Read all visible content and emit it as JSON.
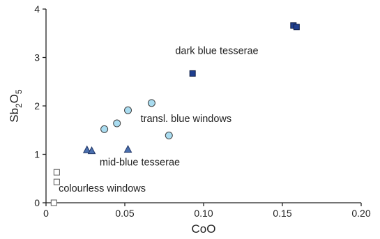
{
  "chart_data": {
    "type": "scatter",
    "title": "",
    "xlabel": "CoO",
    "ylabel": {
      "base": "Sb",
      "sub1": "2",
      "mid": "O",
      "sub2": "5"
    },
    "xlim": [
      0,
      0.2
    ],
    "ylim": [
      0,
      4
    ],
    "xticks": [
      0,
      0.05,
      0.1,
      0.15,
      0.2
    ],
    "xtick_labels": [
      "0",
      "0.05",
      "0.10",
      "0.15",
      "0.20"
    ],
    "yticks": [
      0,
      1,
      2,
      3,
      4
    ],
    "ytick_labels": [
      "0",
      "1",
      "2",
      "3",
      "4"
    ],
    "grid": false,
    "legend": "none",
    "series": [
      {
        "marker": "square",
        "fill": "#ffffff",
        "stroke": "#555555",
        "points": [
          {
            "x": 0.005,
            "y": 0.0
          },
          {
            "x": 0.0068,
            "y": 0.43
          },
          {
            "x": 0.0068,
            "y": 0.63
          }
        ]
      },
      {
        "marker": "triangle",
        "fill": "#4a6fae",
        "stroke": "#1f3566",
        "points": [
          {
            "x": 0.026,
            "y": 1.09
          },
          {
            "x": 0.029,
            "y": 1.07
          },
          {
            "x": 0.052,
            "y": 1.1
          }
        ]
      },
      {
        "marker": "circle",
        "fill": "#a9dcf0",
        "stroke": "#404040",
        "points": [
          {
            "x": 0.037,
            "y": 1.52
          },
          {
            "x": 0.045,
            "y": 1.64
          },
          {
            "x": 0.052,
            "y": 1.91
          },
          {
            "x": 0.067,
            "y": 2.06
          },
          {
            "x": 0.078,
            "y": 1.39
          }
        ]
      },
      {
        "marker": "square",
        "fill": "#1f3f8f",
        "stroke": "#0e1d44",
        "points": [
          {
            "x": 0.093,
            "y": 2.67
          },
          {
            "x": 0.157,
            "y": 3.66
          },
          {
            "x": 0.159,
            "y": 3.63
          }
        ]
      }
    ],
    "annotations": [
      {
        "text": "dark blue tesserae",
        "x": 0.082,
        "y": 3.07
      },
      {
        "text": "transl. blue windows",
        "x": 0.06,
        "y": 1.67
      },
      {
        "text": "mid-blue tesserae",
        "x": 0.034,
        "y": 0.77
      },
      {
        "text": "colourless windows",
        "x": 0.008,
        "y": 0.23
      }
    ]
  }
}
